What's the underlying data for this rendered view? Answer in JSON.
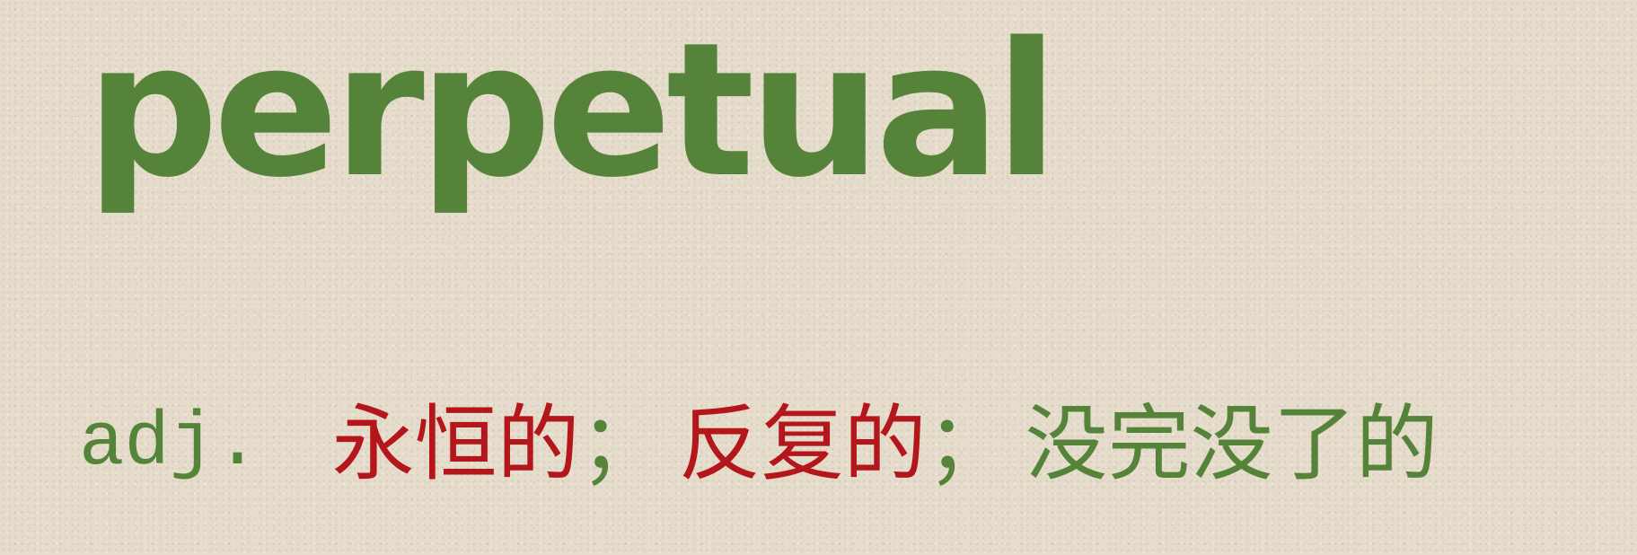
{
  "headword": "perpetual",
  "watermark": "",
  "definition": {
    "pos": "adj.",
    "meaning_1": "永恒的",
    "separator_1": "；",
    "meaning_2": "反复的",
    "separator_2": "；",
    "meaning_3": "没完没了的"
  },
  "colors": {
    "background": "#e6dccb",
    "green": "#55833a",
    "red": "#b3161b"
  }
}
